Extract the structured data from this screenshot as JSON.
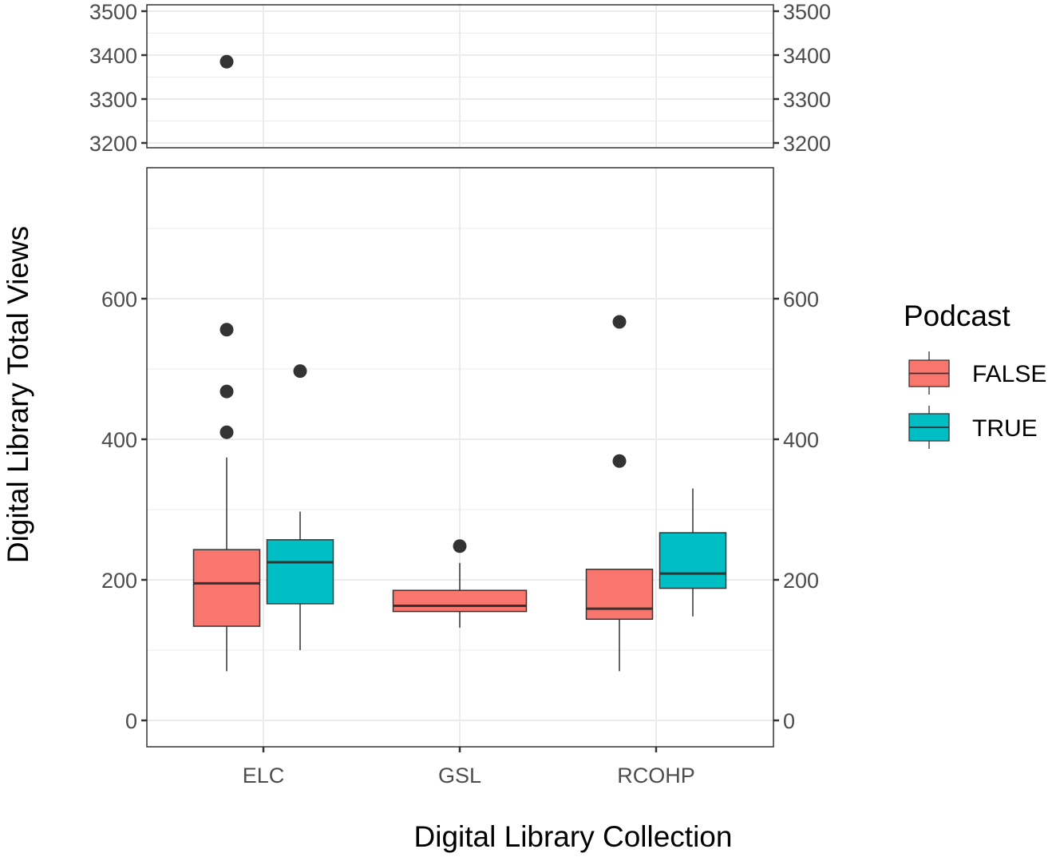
{
  "chart_data": {
    "type": "boxplot",
    "title": "",
    "xlabel": "Digital Library Collection",
    "ylabel": "Digital Library Total Views",
    "categories": [
      "ELC",
      "GSL",
      "RCOHP"
    ],
    "legend": {
      "title": "Podcast",
      "position": "right",
      "entries": [
        {
          "label": "FALSE",
          "color": "#F8766D"
        },
        {
          "label": "TRUE",
          "color": "#00BFC4"
        }
      ]
    },
    "axis_break": true,
    "panels": [
      {
        "name": "upper",
        "ylim": [
          3190,
          3515
        ],
        "yticks": [
          3200,
          3300,
          3400,
          3500
        ]
      },
      {
        "name": "lower",
        "ylim": [
          -37,
          786
        ],
        "yticks": [
          0,
          200,
          400,
          600
        ]
      }
    ],
    "grid": true,
    "series": [
      {
        "name": "FALSE",
        "color": "#F8766D",
        "boxes": [
          {
            "category": "ELC",
            "min": 70,
            "q1": 134,
            "median": 195,
            "q3": 243,
            "max": 374,
            "outliers": [
              410,
              468,
              556,
              3385
            ]
          },
          {
            "category": "GSL",
            "min": 132,
            "q1": 155,
            "median": 163,
            "q3": 185,
            "max": 224,
            "outliers": [
              248
            ]
          },
          {
            "category": "RCOHP",
            "min": 70,
            "q1": 144,
            "median": 159,
            "q3": 215,
            "max": 215,
            "outliers": [
              369,
              567
            ]
          }
        ]
      },
      {
        "name": "TRUE",
        "color": "#00BFC4",
        "boxes": [
          {
            "category": "ELC",
            "min": 100,
            "q1": 166,
            "median": 225,
            "q3": 257,
            "max": 297,
            "outliers": [
              497
            ]
          },
          {
            "category": "RCOHP",
            "min": 148,
            "q1": 188,
            "median": 209,
            "q3": 267,
            "max": 330,
            "outliers": []
          }
        ]
      }
    ]
  },
  "labels": {
    "xlabel": "Digital Library Collection",
    "ylabel": "Digital Library Total Views",
    "legend_title": "Podcast",
    "legend_false": "FALSE",
    "legend_true": "TRUE",
    "x_ticks": [
      "ELC",
      "GSL",
      "RCOHP"
    ],
    "upper_ticks": [
      "3500",
      "3400",
      "3300",
      "3200"
    ],
    "lower_ticks": [
      "600",
      "400",
      "200",
      "0"
    ]
  }
}
